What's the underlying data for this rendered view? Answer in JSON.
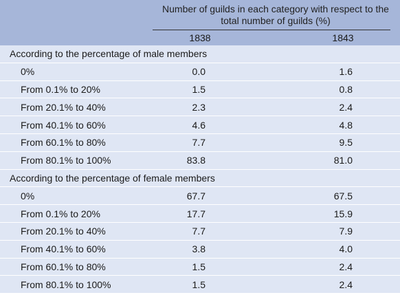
{
  "header": {
    "group_title": "Number of guilds in each category with respect to the total number of guilds (%)",
    "years": [
      "1838",
      "1843"
    ]
  },
  "sections": [
    {
      "title": "According to the percentage of male members",
      "rows": [
        {
          "label": "0%",
          "v1838": "0.0",
          "v1843": "1.6"
        },
        {
          "label": "From 0.1% to 20%",
          "v1838": "1.5",
          "v1843": "0.8"
        },
        {
          "label": "From 20.1% to 40%",
          "v1838": "2.3",
          "v1843": "2.4"
        },
        {
          "label": "From 40.1% to 60%",
          "v1838": "4.6",
          "v1843": "4.8"
        },
        {
          "label": "From 60.1% to 80%",
          "v1838": "7.7",
          "v1843": "9.5"
        },
        {
          "label": "From 80.1% to 100%",
          "v1838": "83.8",
          "v1843": "81.0"
        }
      ]
    },
    {
      "title": "According to the percentage of female members",
      "rows": [
        {
          "label": "0%",
          "v1838": "67.7",
          "v1843": "67.5"
        },
        {
          "label": "From 0.1% to 20%",
          "v1838": "17.7",
          "v1843": "15.9"
        },
        {
          "label": "From 20.1% to 40%",
          "v1838": "7.7",
          "v1843": "7.9"
        },
        {
          "label": "From 40.1% to 60%",
          "v1838": "3.8",
          "v1843": "4.0"
        },
        {
          "label": "From 60.1% to 80%",
          "v1838": "1.5",
          "v1843": "2.4"
        },
        {
          "label": "From 80.1% to 100%",
          "v1838": "1.5",
          "v1843": "2.4"
        }
      ]
    }
  ]
}
